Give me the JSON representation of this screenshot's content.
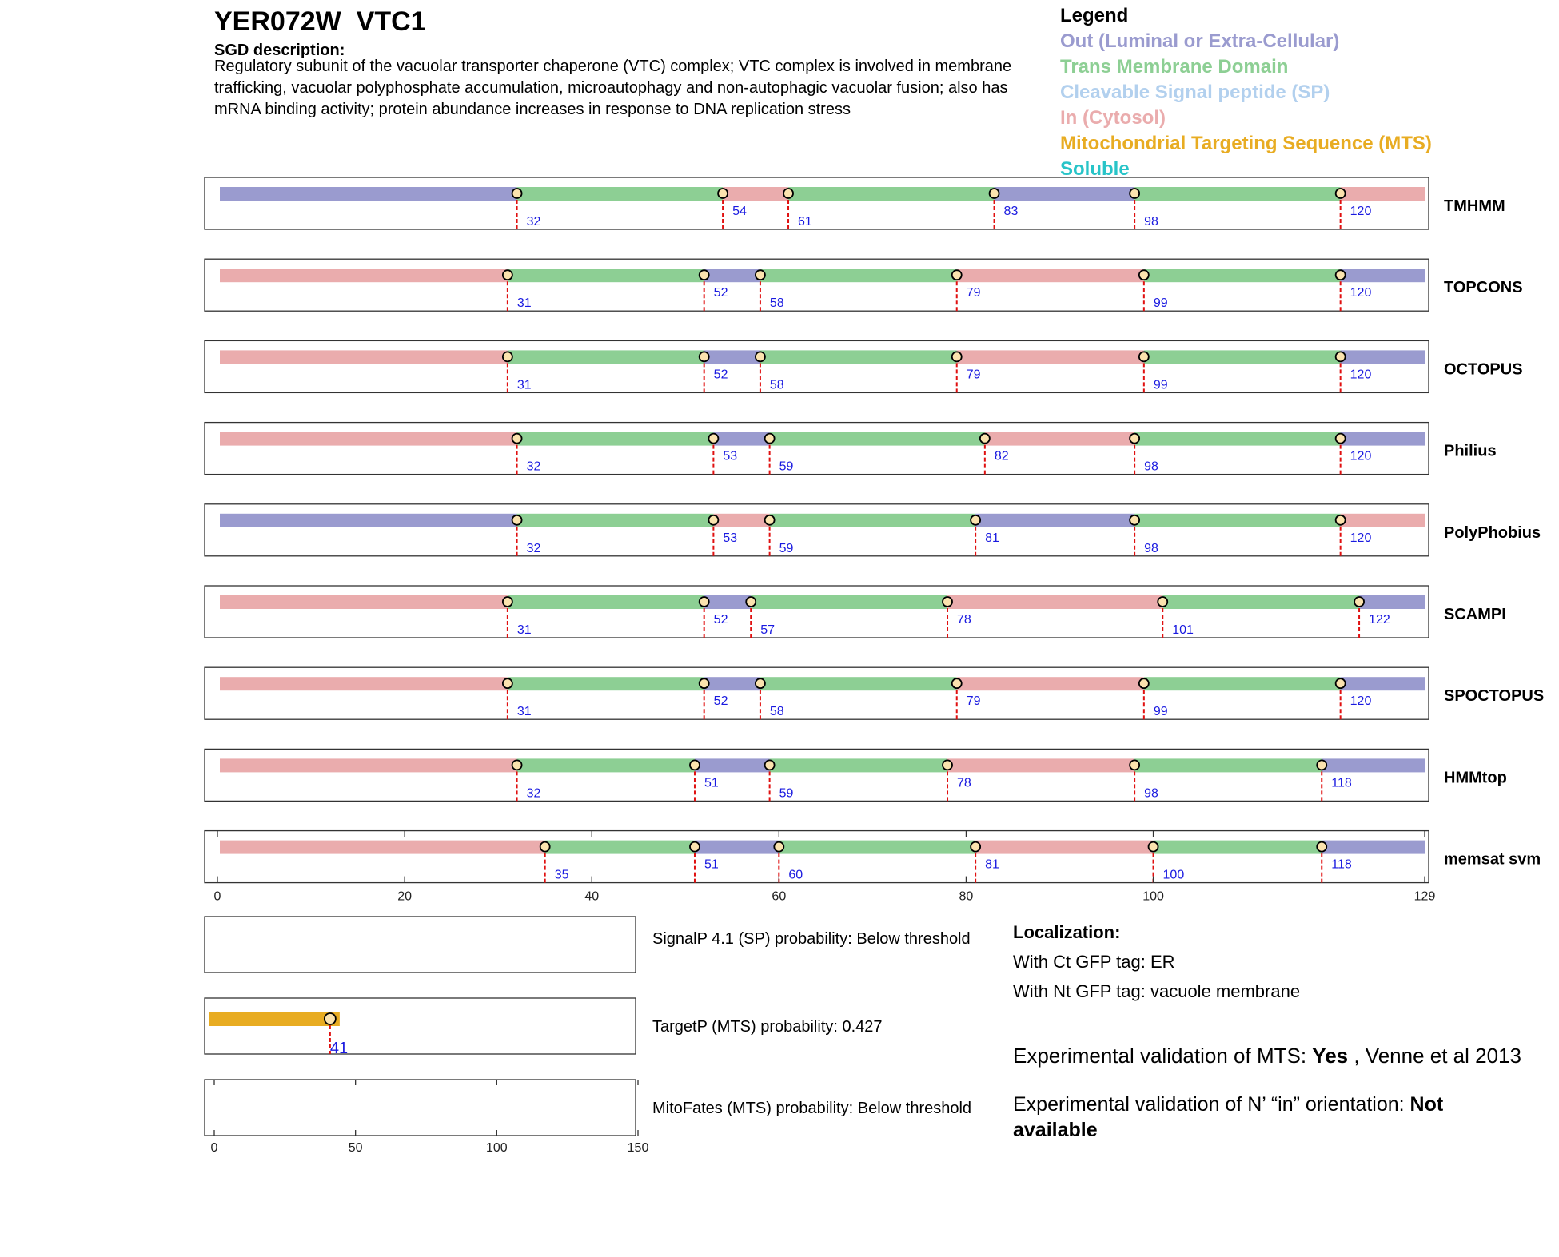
{
  "header": {
    "gene_id": "YER072W",
    "gene_name": "VTC1",
    "sgd_label": "SGD description:",
    "sgd_description": "Regulatory subunit of the vacuolar transporter chaperone (VTC) complex; VTC complex is involved in membrane trafficking, vacuolar polyphosphate accumulation, microautophagy and non-autophagic vacuolar fusion; also has mRNA binding activity; protein abundance increases in response to DNA replication stress"
  },
  "legend": {
    "title": "Legend",
    "items": [
      {
        "label": "Out (Luminal or Extra-Cellular)",
        "color": "#9a9bcf"
      },
      {
        "label": "Trans Membrane Domain",
        "color": "#8dcf94"
      },
      {
        "label": "Cleavable Signal peptide (SP)",
        "color": "#b2d0ee"
      },
      {
        "label": "In (Cytosol)",
        "color": "#eaacad"
      },
      {
        "label": "Mitochondrial Targeting Sequence (MTS)",
        "color": "#e8ac22"
      },
      {
        "label": "Soluble",
        "color": "#28c4c8"
      }
    ]
  },
  "chart_data": [
    {
      "type": "topology-tracks",
      "protein_length": 129,
      "xlim": [
        0,
        129
      ],
      "xticks": [
        0,
        20,
        40,
        60,
        80,
        100,
        129
      ],
      "colors": {
        "out": "#9a9bcf",
        "tm": "#8dcf94",
        "in": "#eaacad"
      },
      "tracks": [
        {
          "name": "TMHMM",
          "start": "out",
          "boundaries": [
            32,
            54,
            61,
            83,
            98,
            120
          ]
        },
        {
          "name": "TOPCONS",
          "start": "in",
          "boundaries": [
            31,
            52,
            58,
            79,
            99,
            120
          ]
        },
        {
          "name": "OCTOPUS",
          "start": "in",
          "boundaries": [
            31,
            52,
            58,
            79,
            99,
            120
          ]
        },
        {
          "name": "Philius",
          "start": "in",
          "boundaries": [
            32,
            53,
            59,
            82,
            98,
            120
          ]
        },
        {
          "name": "PolyPhobius",
          "start": "out",
          "boundaries": [
            32,
            53,
            59,
            81,
            98,
            120
          ]
        },
        {
          "name": "SCAMPI",
          "start": "in",
          "boundaries": [
            31,
            52,
            57,
            78,
            101,
            122
          ]
        },
        {
          "name": "SPOCTOPUS",
          "start": "in",
          "boundaries": [
            31,
            52,
            58,
            79,
            99,
            120
          ]
        },
        {
          "name": "HMMtop",
          "start": "in",
          "boundaries": [
            32,
            51,
            59,
            78,
            98,
            118
          ]
        },
        {
          "name": "memsat svm",
          "start": "in",
          "boundaries": [
            35,
            51,
            60,
            81,
            100,
            118
          ]
        }
      ]
    },
    {
      "type": "bar",
      "xlim": [
        0,
        150
      ],
      "xticks": [
        0,
        50,
        100,
        150
      ],
      "panels": [
        {
          "name": "SignalP",
          "label": "SignalP 4.1 (SP) probability: Below threshold",
          "bar_end": null
        },
        {
          "name": "TargetP",
          "label": "TargetP (MTS) probability: 0.427",
          "bar_end": 41,
          "color": "#e8ac22"
        },
        {
          "name": "MitoFates",
          "label": "MitoFates (MTS) probability: Below threshold",
          "bar_end": null
        }
      ]
    }
  ],
  "localization": {
    "title": "Localization:",
    "ct": "With Ct GFP tag: ER",
    "nt": "With Nt GFP tag: vacuole membrane"
  },
  "experimental": {
    "mts_prefix": "Experimental validation of MTS: ",
    "mts_value": "Yes",
    "mts_suffix": " , Venne et al 2013",
    "orient_prefix": "Experimental validation of N’ “in” orientation: ",
    "orient_value": "Not available"
  }
}
